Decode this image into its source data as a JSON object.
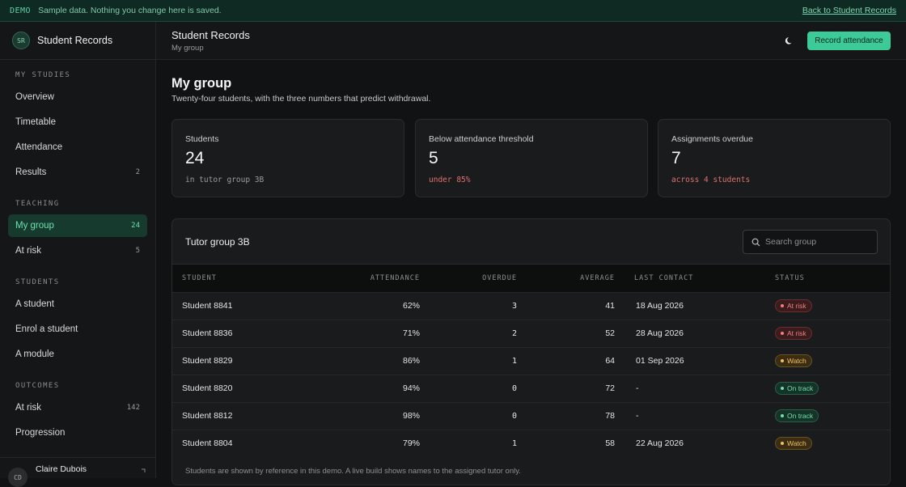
{
  "banner": {
    "tag": "DEMO",
    "message": "Sample data. Nothing you change here is saved.",
    "back_link": "Back to Student Records"
  },
  "sidebar": {
    "brand_initials": "SR",
    "brand_name": "Student Records",
    "sections": {
      "my_studies": "MY STUDIES",
      "teaching": "TEACHING",
      "students": "STUDENTS",
      "outcomes": "OUTCOMES"
    },
    "items": {
      "overview": "Overview",
      "timetable": "Timetable",
      "attendance": "Attendance",
      "results": "Results",
      "results_count": "2",
      "my_group": "My group",
      "my_group_count": "24",
      "at_risk": "At risk",
      "at_risk_count": "5",
      "a_student": "A student",
      "enrol": "Enrol a student",
      "a_module": "A module",
      "outcomes_at_risk": "At risk",
      "outcomes_at_risk_count": "142",
      "progression": "Progression"
    },
    "user": {
      "initials": "CD",
      "name": "Claire Dubois"
    }
  },
  "topbar": {
    "title": "Student Records",
    "subtitle": "My group",
    "theme_icon": "moon-icon",
    "primary_button": "Record attendance"
  },
  "main": {
    "title": "My group",
    "description": "Twenty-four students, with the three numbers that predict withdrawal.",
    "stats": [
      {
        "label": "Students",
        "value": "24",
        "note": "in tutor group 3B"
      },
      {
        "label": "Below attendance threshold",
        "value": "5",
        "note": "under 85%"
      },
      {
        "label": "Assignments overdue",
        "value": "7",
        "note": "across 4 students"
      }
    ],
    "panel": {
      "title": "Tutor group 3B",
      "search_placeholder": "Search group",
      "columns": [
        "STUDENT",
        "ATTENDANCE",
        "OVERDUE",
        "AVERAGE",
        "LAST CONTACT",
        "STATUS"
      ],
      "rows": [
        {
          "student": "Student 8841",
          "attendance": "62%",
          "overdue": "3",
          "average": "41",
          "last_contact": "18 Aug 2026",
          "status": "At risk"
        },
        {
          "student": "Student 8836",
          "attendance": "71%",
          "overdue": "2",
          "average": "52",
          "last_contact": "28 Aug 2026",
          "status": "At risk"
        },
        {
          "student": "Student 8829",
          "attendance": "86%",
          "overdue": "1",
          "average": "64",
          "last_contact": "01 Sep 2026",
          "status": "Watch"
        },
        {
          "student": "Student 8820",
          "attendance": "94%",
          "overdue": "0",
          "average": "72",
          "last_contact": "-",
          "status": "On track"
        },
        {
          "student": "Student 8812",
          "attendance": "98%",
          "overdue": "0",
          "average": "78",
          "last_contact": "-",
          "status": "On track"
        },
        {
          "student": "Student 8804",
          "attendance": "79%",
          "overdue": "1",
          "average": "58",
          "last_contact": "22 Aug 2026",
          "status": "Watch"
        }
      ],
      "footnote": "Students are shown by reference in this demo. A live build shows names to the assigned tutor only."
    }
  },
  "colors": {
    "accent": "#3ccb98",
    "risk": "#f07f7e",
    "watch": "#f2c060",
    "track": "#6fe0b0"
  }
}
